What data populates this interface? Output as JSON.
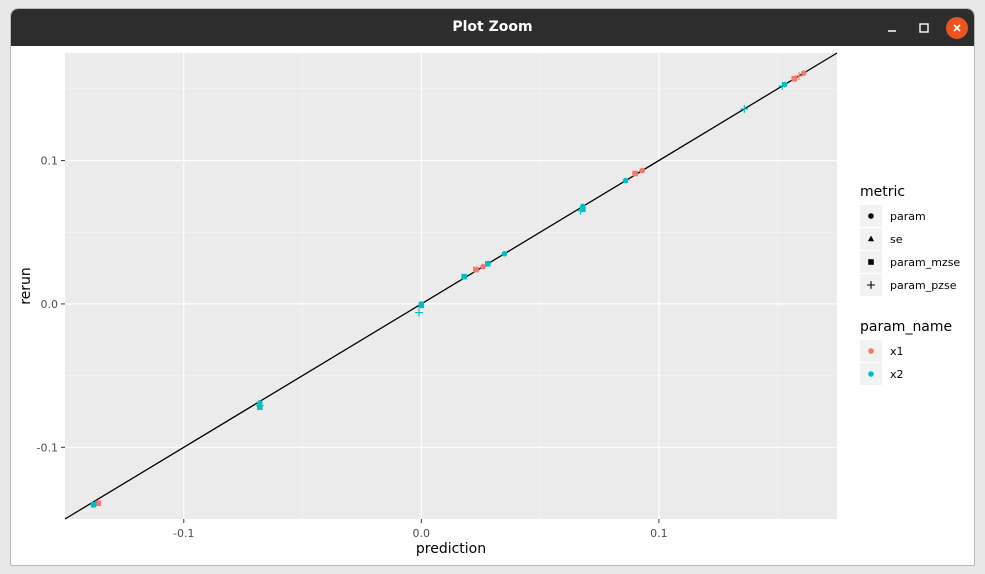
{
  "window": {
    "title": "Plot Zoom",
    "icons": {
      "minimize": "minimize-icon",
      "maximize": "maximize-icon",
      "close": "close-icon"
    }
  },
  "chart_data": {
    "type": "scatter",
    "xlabel": "prediction",
    "ylabel": "rerun",
    "xlim": [
      -0.15,
      0.175
    ],
    "ylim": [
      -0.15,
      0.175
    ],
    "x_ticks": [
      -0.1,
      0.0,
      0.1
    ],
    "x_tick_labels": [
      "-0.1",
      "0.0",
      "0.1"
    ],
    "y_ticks": [
      -0.1,
      0.0,
      0.1
    ],
    "y_tick_labels": [
      "-0.1",
      "0.0",
      "0.1"
    ],
    "grid": true,
    "background": "#ebebeb",
    "reference_line": {
      "slope": 1,
      "intercept": 0,
      "color": "#000000"
    },
    "legend_position": "right",
    "legends": [
      {
        "title": "metric",
        "kind": "shape",
        "entries": [
          {
            "label": "param",
            "shape": "circle"
          },
          {
            "label": "se",
            "shape": "triangle"
          },
          {
            "label": "param_mzse",
            "shape": "square"
          },
          {
            "label": "param_pzse",
            "shape": "plus"
          }
        ]
      },
      {
        "title": "param_name",
        "kind": "color",
        "entries": [
          {
            "label": "x1",
            "color": "#F8766D"
          },
          {
            "label": "x2",
            "color": "#00BFC4"
          }
        ]
      }
    ],
    "points": [
      {
        "x": -0.136,
        "y": -0.139,
        "metric": "param_mzse",
        "param_name": "x1"
      },
      {
        "x": -0.138,
        "y": -0.14,
        "metric": "param_mzse",
        "param_name": "x2"
      },
      {
        "x": -0.068,
        "y": -0.069,
        "metric": "param",
        "param_name": "x2"
      },
      {
        "x": -0.068,
        "y": -0.072,
        "metric": "param_mzse",
        "param_name": "x2"
      },
      {
        "x": -0.068,
        "y": -0.071,
        "metric": "param_pzse",
        "param_name": "x2"
      },
      {
        "x": 0.0,
        "y": 0.0,
        "metric": "param",
        "param_name": "x2"
      },
      {
        "x": 0.0,
        "y": -0.001,
        "metric": "param_mzse",
        "param_name": "x2"
      },
      {
        "x": -0.001,
        "y": -0.006,
        "metric": "param_pzse",
        "param_name": "x2"
      },
      {
        "x": 0.018,
        "y": 0.019,
        "metric": "param_mzse",
        "param_name": "x2"
      },
      {
        "x": 0.023,
        "y": 0.024,
        "metric": "param_mzse",
        "param_name": "x1"
      },
      {
        "x": 0.026,
        "y": 0.026,
        "metric": "param",
        "param_name": "x1"
      },
      {
        "x": 0.028,
        "y": 0.028,
        "metric": "param_mzse",
        "param_name": "x2"
      },
      {
        "x": 0.035,
        "y": 0.035,
        "metric": "param",
        "param_name": "x2"
      },
      {
        "x": 0.068,
        "y": 0.068,
        "metric": "param",
        "param_name": "x2"
      },
      {
        "x": 0.068,
        "y": 0.066,
        "metric": "param_mzse",
        "param_name": "x2"
      },
      {
        "x": 0.067,
        "y": 0.065,
        "metric": "param_pzse",
        "param_name": "x2"
      },
      {
        "x": 0.086,
        "y": 0.086,
        "metric": "param",
        "param_name": "x2"
      },
      {
        "x": 0.09,
        "y": 0.091,
        "metric": "param_mzse",
        "param_name": "x1"
      },
      {
        "x": 0.093,
        "y": 0.093,
        "metric": "param",
        "param_name": "x1"
      },
      {
        "x": 0.136,
        "y": 0.136,
        "metric": "param_pzse",
        "param_name": "x2"
      },
      {
        "x": 0.153,
        "y": 0.153,
        "metric": "param",
        "param_name": "x2"
      },
      {
        "x": 0.152,
        "y": 0.152,
        "metric": "param_pzse",
        "param_name": "x2"
      },
      {
        "x": 0.157,
        "y": 0.157,
        "metric": "param_mzse",
        "param_name": "x1"
      },
      {
        "x": 0.159,
        "y": 0.159,
        "metric": "param_pzse",
        "param_name": "x1"
      },
      {
        "x": 0.161,
        "y": 0.161,
        "metric": "param",
        "param_name": "x1"
      }
    ]
  }
}
